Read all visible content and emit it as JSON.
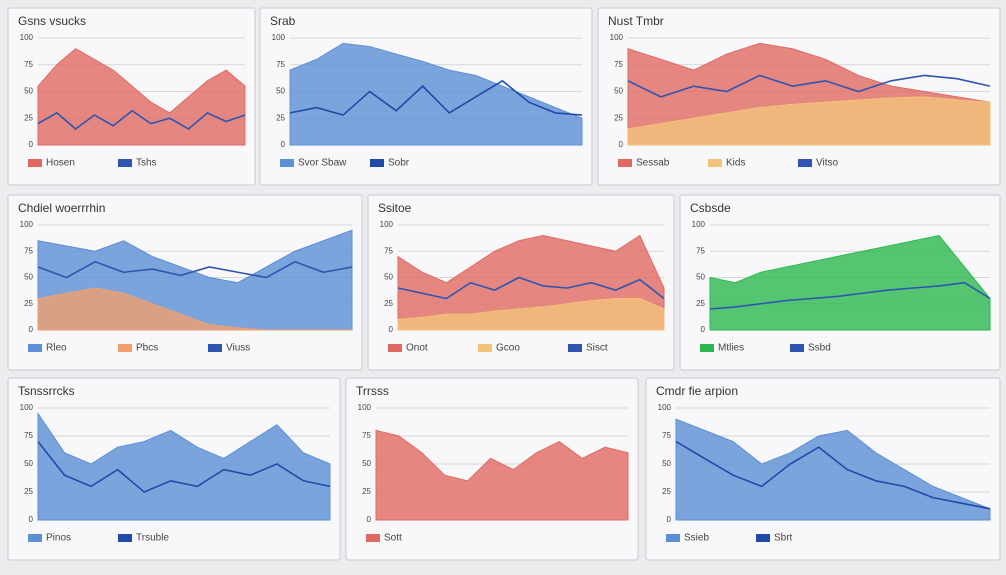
{
  "chart_data": [
    {
      "type": "area",
      "title": "Gsns vsucks",
      "ylim": [
        0,
        100
      ],
      "yticks": [
        0,
        25,
        50,
        75,
        100
      ],
      "grid": true,
      "series": [
        {
          "name": "Hosen",
          "kind": "area",
          "color": "#e06a62",
          "values": [
            55,
            75,
            90,
            80,
            70,
            55,
            40,
            30,
            45,
            60,
            70,
            55
          ]
        },
        {
          "name": "Tshs",
          "kind": "line",
          "color": "#2f55b0",
          "values": [
            20,
            30,
            15,
            28,
            18,
            32,
            20,
            25,
            15,
            30,
            22,
            28
          ]
        }
      ]
    },
    {
      "type": "area",
      "title": "Srab",
      "ylim": [
        0,
        100
      ],
      "yticks": [
        0,
        25,
        50,
        75,
        100
      ],
      "grid": true,
      "series": [
        {
          "name": "Svor Sbaw",
          "kind": "area",
          "color": "#5b8fd6",
          "values": [
            70,
            80,
            95,
            92,
            85,
            78,
            70,
            65,
            55,
            45,
            35,
            25
          ]
        },
        {
          "name": "Sobr",
          "kind": "line",
          "color": "#1f4aa8",
          "values": [
            30,
            35,
            28,
            50,
            32,
            55,
            30,
            45,
            60,
            40,
            30,
            28
          ]
        }
      ]
    },
    {
      "type": "area",
      "title": "Nust Tmbr",
      "ylim": [
        0,
        100
      ],
      "yticks": [
        0,
        25,
        50,
        75,
        100
      ],
      "grid": true,
      "series": [
        {
          "name": "Sessab",
          "kind": "area",
          "color": "#e06a62",
          "values": [
            90,
            80,
            70,
            85,
            95,
            90,
            80,
            65,
            55,
            50,
            45,
            40
          ]
        },
        {
          "name": "Kids",
          "kind": "area",
          "color": "#f2c27a",
          "values": [
            15,
            20,
            25,
            30,
            35,
            38,
            40,
            42,
            44,
            45,
            42,
            40
          ]
        },
        {
          "name": "Vitso",
          "kind": "line",
          "color": "#2f55b0",
          "values": [
            60,
            45,
            55,
            50,
            65,
            55,
            60,
            50,
            60,
            65,
            62,
            55
          ]
        }
      ]
    },
    {
      "type": "area",
      "title": "Chdiel woerrrhin",
      "ylim": [
        0,
        100
      ],
      "yticks": [
        0,
        25,
        50,
        75,
        100
      ],
      "grid": true,
      "series": [
        {
          "name": "Rleo",
          "kind": "area",
          "color": "#5b8fd6",
          "values": [
            85,
            80,
            75,
            85,
            70,
            60,
            50,
            45,
            60,
            75,
            85,
            95
          ]
        },
        {
          "name": "Pbcs",
          "kind": "area",
          "color": "#f0a070",
          "values": [
            30,
            35,
            40,
            35,
            25,
            15,
            5,
            2,
            0,
            0,
            0,
            0
          ]
        },
        {
          "name": "Viuss",
          "kind": "line",
          "color": "#2f55b0",
          "values": [
            60,
            50,
            65,
            55,
            58,
            52,
            60,
            55,
            50,
            65,
            55,
            60
          ]
        }
      ]
    },
    {
      "type": "area",
      "title": "Ssitoe",
      "ylim": [
        0,
        100
      ],
      "yticks": [
        0,
        25,
        50,
        75,
        100
      ],
      "grid": true,
      "series": [
        {
          "name": "Onot",
          "kind": "area",
          "color": "#e06a62",
          "values": [
            70,
            55,
            45,
            60,
            75,
            85,
            90,
            85,
            80,
            75,
            90,
            40
          ]
        },
        {
          "name": "Gcoo",
          "kind": "area",
          "color": "#f2c27a",
          "values": [
            10,
            12,
            15,
            15,
            18,
            20,
            22,
            25,
            28,
            30,
            30,
            20
          ]
        },
        {
          "name": "Sisct",
          "kind": "line",
          "color": "#2f55b0",
          "values": [
            40,
            35,
            30,
            45,
            38,
            50,
            42,
            40,
            45,
            38,
            48,
            30
          ]
        }
      ]
    },
    {
      "type": "area",
      "title": "Csbsde",
      "ylim": [
        0,
        100
      ],
      "yticks": [
        0,
        25,
        50,
        75,
        100
      ],
      "grid": true,
      "series": [
        {
          "name": "Mtlies",
          "kind": "area",
          "color": "#2db84f",
          "values": [
            50,
            45,
            55,
            60,
            65,
            70,
            75,
            80,
            85,
            90,
            60,
            30
          ]
        },
        {
          "name": "Ssbd",
          "kind": "line",
          "color": "#2f55b0",
          "values": [
            20,
            22,
            25,
            28,
            30,
            32,
            35,
            38,
            40,
            42,
            45,
            30
          ]
        }
      ]
    },
    {
      "type": "area",
      "title": "Tsnssrrcks",
      "ylim": [
        0,
        100
      ],
      "yticks": [
        0,
        25,
        50,
        75,
        100
      ],
      "grid": true,
      "series": [
        {
          "name": "Pinos",
          "kind": "area",
          "color": "#5b8fd6",
          "values": [
            95,
            60,
            50,
            65,
            70,
            80,
            65,
            55,
            70,
            85,
            60,
            50
          ]
        },
        {
          "name": "Trsuble",
          "kind": "line",
          "color": "#1f4aa8",
          "values": [
            70,
            40,
            30,
            45,
            25,
            35,
            30,
            45,
            40,
            50,
            35,
            30
          ]
        }
      ]
    },
    {
      "type": "area",
      "title": "Trrsss",
      "ylim": [
        0,
        100
      ],
      "yticks": [
        0,
        25,
        50,
        75,
        100
      ],
      "grid": true,
      "series": [
        {
          "name": "Sott",
          "kind": "area",
          "color": "#e06a62",
          "values": [
            80,
            75,
            60,
            40,
            35,
            55,
            45,
            60,
            70,
            55,
            65,
            60
          ]
        }
      ]
    },
    {
      "type": "area",
      "title": "Cmdr fie arpion",
      "ylim": [
        0,
        100
      ],
      "yticks": [
        0,
        25,
        50,
        75,
        100
      ],
      "grid": true,
      "series": [
        {
          "name": "Ssieb",
          "kind": "area",
          "color": "#5b8fd6",
          "values": [
            90,
            80,
            70,
            50,
            60,
            75,
            80,
            60,
            45,
            30,
            20,
            10
          ]
        },
        {
          "name": "Sbrt",
          "kind": "line",
          "color": "#1f4aa8",
          "values": [
            70,
            55,
            40,
            30,
            50,
            65,
            45,
            35,
            30,
            20,
            15,
            10
          ]
        }
      ]
    }
  ]
}
